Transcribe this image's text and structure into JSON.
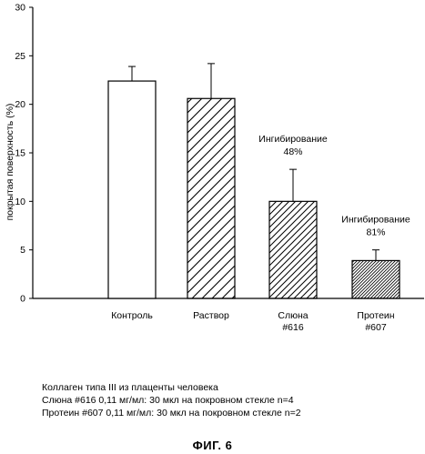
{
  "chart_data": {
    "type": "bar",
    "title": "",
    "xlabel": "",
    "ylabel": "покрытая поверхность (%)",
    "ylim": [
      0,
      30
    ],
    "yticks": [
      0,
      5,
      10,
      15,
      20,
      25,
      30
    ],
    "grid": false,
    "categories": [
      {
        "lines": [
          "Контроль"
        ]
      },
      {
        "lines": [
          "Раствор"
        ]
      },
      {
        "lines": [
          "Слюна",
          "#616"
        ]
      },
      {
        "lines": [
          "Протеин",
          "#607"
        ]
      }
    ],
    "values": [
      22.4,
      20.6,
      10.0,
      3.9
    ],
    "errors": [
      1.5,
      3.6,
      3.3,
      1.1
    ],
    "fills": [
      "none",
      "hatch-wide",
      "hatch-medium",
      "hatch-dense"
    ],
    "annotations": [
      {
        "category_index": 2,
        "lines": [
          "Ингибирование",
          "48%"
        ]
      },
      {
        "category_index": 3,
        "lines": [
          "Ингибирование",
          "81%"
        ]
      }
    ]
  },
  "caption": {
    "line1": "Коллаген типа III из плаценты человека",
    "line2": "Слюна #616 0,11 мг/мл: 30 мкл на покровном стекле n=4",
    "line3": "Протеин #607 0,11 мг/мл: 30 мкл на покровном стекле n=2"
  },
  "figure_label": "ФИГ. 6"
}
